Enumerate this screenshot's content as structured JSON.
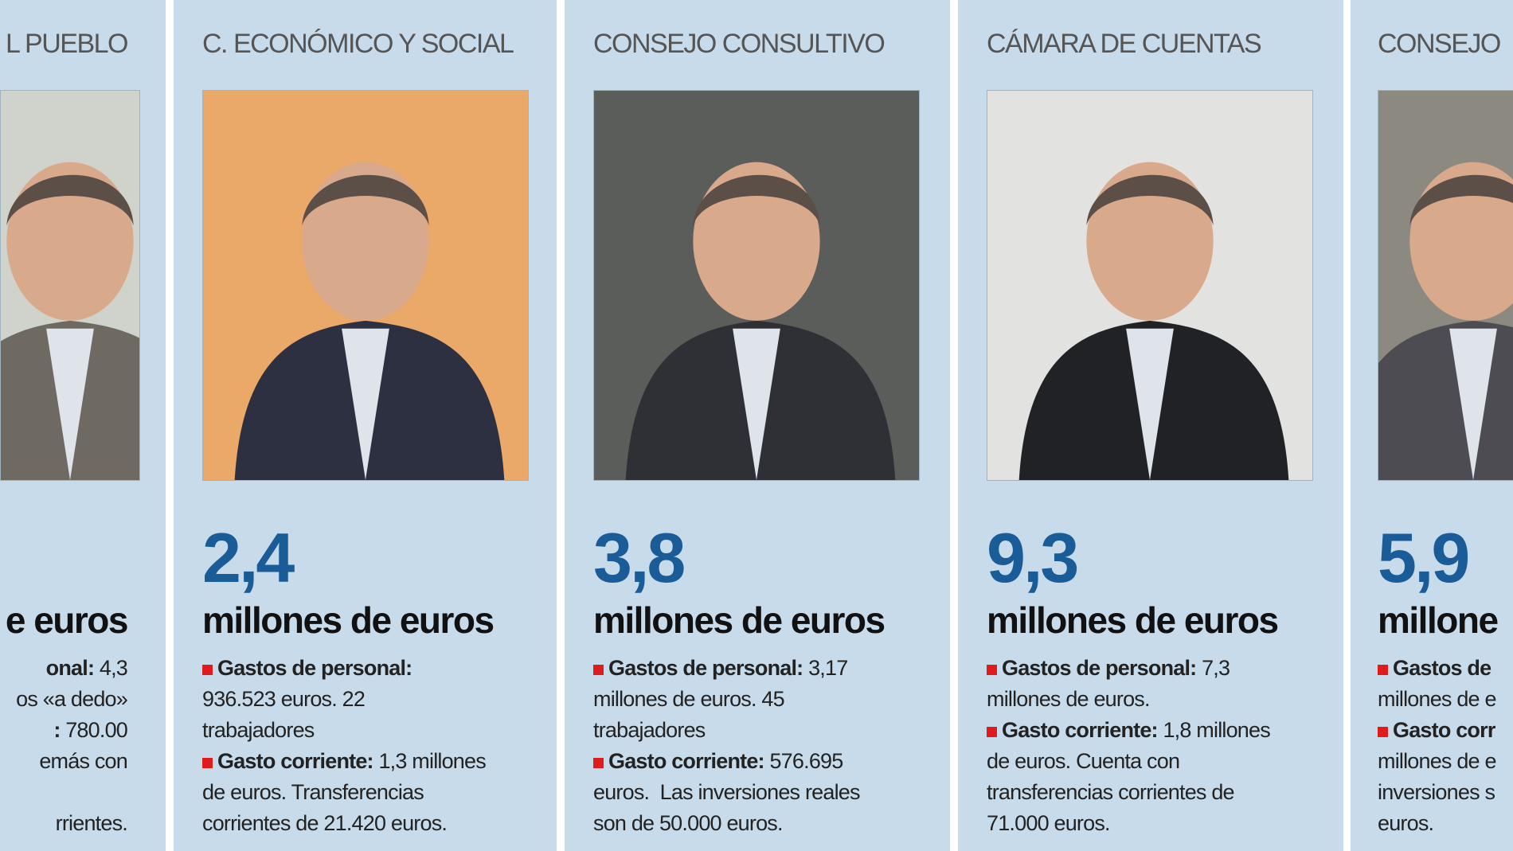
{
  "panels": [
    {
      "title": "L PUEBLO",
      "unit": "e euros",
      "lines": [
        {
          "bold": "onal:",
          "text": " 4,3"
        },
        {
          "text": "os «a dedo»"
        },
        {
          "bold": ":",
          "text": " 780.00"
        },
        {
          "text": "emás con"
        },
        {
          "text": "rrientes."
        }
      ]
    },
    {
      "title": "C. ECONÓMICO Y SOCIAL",
      "amount": "2,4",
      "unit": "millones de euros",
      "lines": [
        {
          "bold": "Gastos de personal:"
        },
        {
          "text": "936.523 euros. 22"
        },
        {
          "text": "trabajadores"
        },
        {
          "bold": "Gasto corriente:",
          "text": " 1,3 millones"
        },
        {
          "text": "de euros. Transferencias"
        },
        {
          "text": "corrientes de 21.420 euros."
        }
      ]
    },
    {
      "title": "CONSEJO CONSULTIVO",
      "amount": "3,8",
      "unit": "millones de euros",
      "lines": [
        {
          "bold": "Gastos de personal:",
          "text": " 3,17"
        },
        {
          "text": "millones de euros. 45"
        },
        {
          "text": "trabajadores"
        },
        {
          "bold": "Gasto corriente:",
          "text": " 576.695"
        },
        {
          "text": "euros.  Las inversiones reales"
        },
        {
          "text": "son de 50.000 euros."
        }
      ]
    },
    {
      "title": "CÁMARA DE CUENTAS",
      "amount": "9,3",
      "unit": "millones de euros",
      "lines": [
        {
          "bold": "Gastos de personal:",
          "text": " 7,3"
        },
        {
          "text": "millones de euros."
        },
        {
          "bold": "Gasto corriente:",
          "text": " 1,8 millones"
        },
        {
          "text": "de euros. Cuenta con"
        },
        {
          "text": "transferencias corrientes de"
        },
        {
          "text": "71.000 euros."
        }
      ]
    },
    {
      "title": "CONSEJO",
      "amount": "5,9",
      "unit": "millone",
      "lines": [
        {
          "bold": "Gastos de"
        },
        {
          "text": "millones de e"
        },
        {
          "bold": "Gasto corr"
        },
        {
          "text": "millones de e"
        },
        {
          "text": "inversiones s"
        },
        {
          "text": "euros."
        }
      ]
    }
  ]
}
